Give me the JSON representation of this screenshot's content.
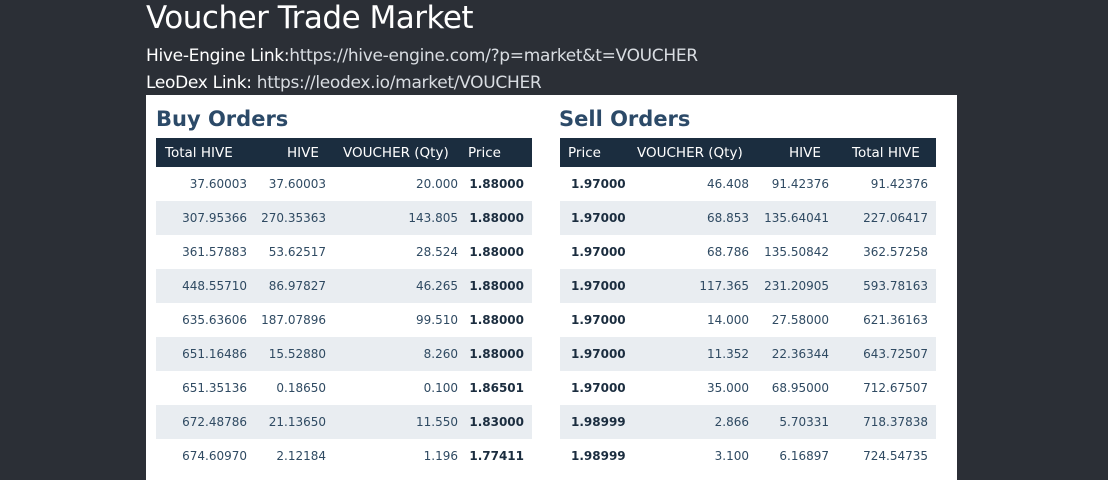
{
  "page": {
    "title": "Voucher Trade Market",
    "hive_engine_label": "Hive-Engine Link:",
    "hive_engine_url": "https://hive-engine.com/?p=market&t=VOUCHER",
    "leodex_label": "LeoDex Link: ",
    "leodex_url": "https://leodex.io/market/VOUCHER"
  },
  "buy_orders": {
    "title": "Buy Orders",
    "columns": [
      "Total HIVE",
      "HIVE",
      "VOUCHER (Qty)",
      "Price"
    ],
    "rows": [
      {
        "total_hive": "37.60003",
        "hive": "37.60003",
        "qty": "20.000",
        "price": "1.88000"
      },
      {
        "total_hive": "307.95366",
        "hive": "270.35363",
        "qty": "143.805",
        "price": "1.88000"
      },
      {
        "total_hive": "361.57883",
        "hive": "53.62517",
        "qty": "28.524",
        "price": "1.88000"
      },
      {
        "total_hive": "448.55710",
        "hive": "86.97827",
        "qty": "46.265",
        "price": "1.88000"
      },
      {
        "total_hive": "635.63606",
        "hive": "187.07896",
        "qty": "99.510",
        "price": "1.88000"
      },
      {
        "total_hive": "651.16486",
        "hive": "15.52880",
        "qty": "8.260",
        "price": "1.88000"
      },
      {
        "total_hive": "651.35136",
        "hive": "0.18650",
        "qty": "0.100",
        "price": "1.86501"
      },
      {
        "total_hive": "672.48786",
        "hive": "21.13650",
        "qty": "11.550",
        "price": "1.83000"
      },
      {
        "total_hive": "674.60970",
        "hive": "2.12184",
        "qty": "1.196",
        "price": "1.77411"
      }
    ]
  },
  "sell_orders": {
    "title": "Sell Orders",
    "columns": [
      "Price",
      "VOUCHER (Qty)",
      "HIVE",
      "Total HIVE"
    ],
    "rows": [
      {
        "price": "1.97000",
        "qty": "46.408",
        "hive": "91.42376",
        "total_hive": "91.42376"
      },
      {
        "price": "1.97000",
        "qty": "68.853",
        "hive": "135.64041",
        "total_hive": "227.06417"
      },
      {
        "price": "1.97000",
        "qty": "68.786",
        "hive": "135.50842",
        "total_hive": "362.57258"
      },
      {
        "price": "1.97000",
        "qty": "117.365",
        "hive": "231.20905",
        "total_hive": "593.78163"
      },
      {
        "price": "1.97000",
        "qty": "14.000",
        "hive": "27.58000",
        "total_hive": "621.36163"
      },
      {
        "price": "1.97000",
        "qty": "11.352",
        "hive": "22.36344",
        "total_hive": "643.72507"
      },
      {
        "price": "1.97000",
        "qty": "35.000",
        "hive": "68.95000",
        "total_hive": "712.67507"
      },
      {
        "price": "1.98999",
        "qty": "2.866",
        "hive": "5.70331",
        "total_hive": "718.37838"
      },
      {
        "price": "1.98999",
        "qty": "3.100",
        "hive": "6.16897",
        "total_hive": "724.54735"
      }
    ]
  },
  "colors": {
    "background": "#2b2f36",
    "panel": "#ffffff",
    "header_bg": "#1b2d3f",
    "section_title": "#2c4a68",
    "row_alt": "#e9edf1"
  }
}
